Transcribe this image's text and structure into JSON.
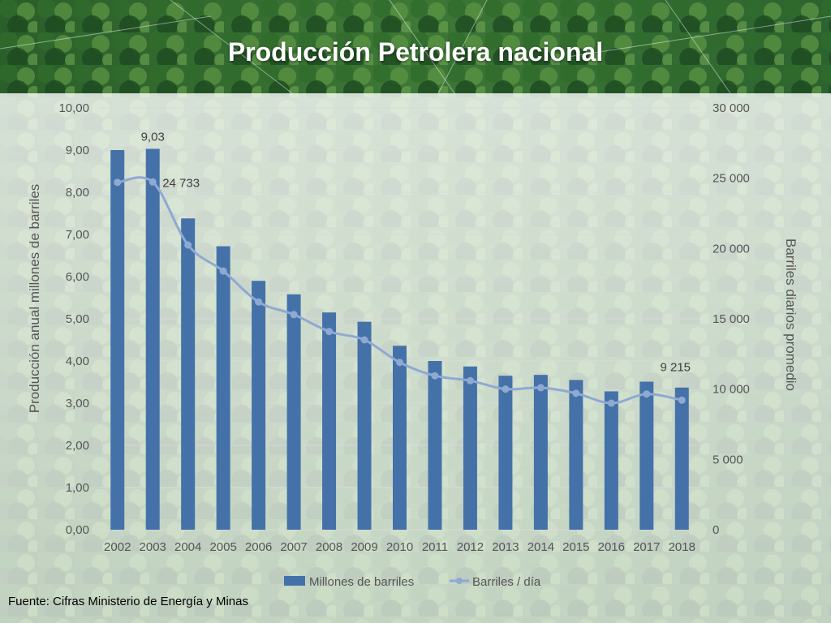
{
  "title": "Producción Petrolera nacional",
  "source": "Fuente: Cifras Ministerio de Energía y Minas",
  "colors": {
    "bars": "#4472a8",
    "line": "#8fa9d3",
    "grid": "#d9d9d9",
    "forest_dark": "#1e4a22",
    "forest_light": "#3f7a3a"
  },
  "chart_data": {
    "type": "bar",
    "title": "Producción Petrolera nacional",
    "categories": [
      "2002",
      "2003",
      "2004",
      "2005",
      "2006",
      "2007",
      "2008",
      "2009",
      "2010",
      "2011",
      "2012",
      "2013",
      "2014",
      "2015",
      "2016",
      "2017",
      "2018"
    ],
    "series": [
      {
        "name": "Millones de barriles",
        "type": "bar",
        "axis": "left",
        "values": [
          9.0,
          9.03,
          7.38,
          6.72,
          5.9,
          5.58,
          5.15,
          4.93,
          4.36,
          4.0,
          3.87,
          3.65,
          3.67,
          3.55,
          3.28,
          3.51,
          3.37
        ]
      },
      {
        "name": "Barriles / día",
        "type": "line",
        "axis": "right",
        "values": [
          24700,
          24733,
          20250,
          18400,
          16200,
          15300,
          14100,
          13500,
          11900,
          10950,
          10600,
          10000,
          10100,
          9700,
          9000,
          9650,
          9215
        ]
      }
    ],
    "y_left": {
      "label": "Producción anual millones de barriles",
      "range": [
        0,
        10
      ],
      "ticks": [
        "0,00",
        "1,00",
        "2,00",
        "3,00",
        "4,00",
        "5,00",
        "6,00",
        "7,00",
        "8,00",
        "9,00",
        "10,00"
      ]
    },
    "y_right": {
      "label": "Barriles diarios promedio",
      "range": [
        0,
        30000
      ],
      "ticks": [
        "0",
        "5 000",
        "10 000",
        "15 000",
        "20 000",
        "25 000",
        "30 000"
      ]
    },
    "data_labels": [
      {
        "series": 0,
        "index": 1,
        "text": "9,03"
      },
      {
        "series": 1,
        "index": 1,
        "text": "24 733"
      },
      {
        "series": 1,
        "index": 16,
        "text": "9 215"
      }
    ],
    "grid": true,
    "legend": "bottom"
  }
}
